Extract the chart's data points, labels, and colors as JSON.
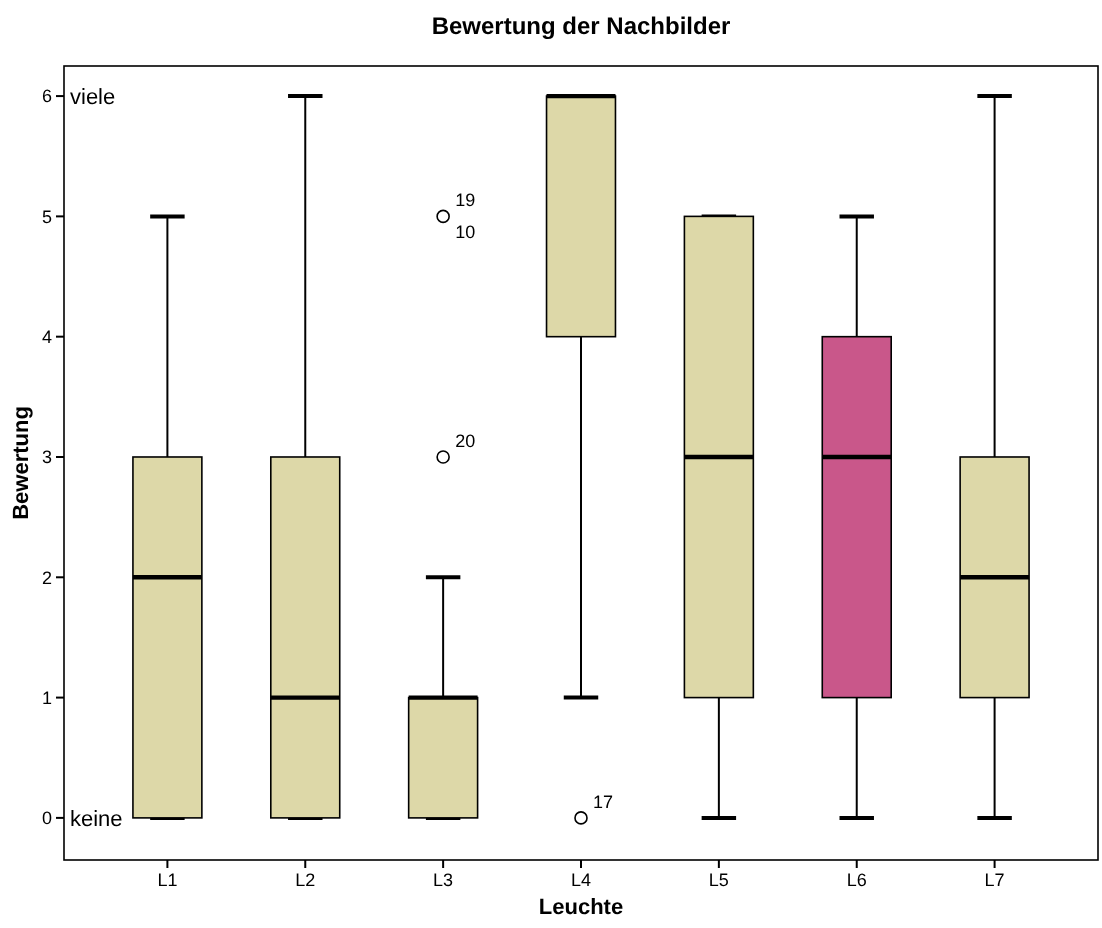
{
  "chart_data": {
    "type": "box",
    "title": "Bewertung der Nachbilder",
    "xlabel": "Leuchte",
    "ylabel": "Bewertung",
    "categories": [
      "L1",
      "L2",
      "L3",
      "L4",
      "L5",
      "L6",
      "L7"
    ],
    "colors": [
      "#ddd8a8",
      "#ddd8a8",
      "#ddd8a8",
      "#ddd8a8",
      "#ddd8a8",
      "#c9578a",
      "#ddd8a8"
    ],
    "boxes": [
      {
        "low": 0,
        "q1": 0,
        "median": 2,
        "q3": 3,
        "high": 5
      },
      {
        "low": 0,
        "q1": 0,
        "median": 1,
        "q3": 3,
        "high": 6
      },
      {
        "low": 0,
        "q1": 0,
        "median": 1,
        "q3": 1,
        "high": 2,
        "outliers": [
          3,
          5
        ]
      },
      {
        "low": 1,
        "q1": 4,
        "median": 6,
        "q3": 6,
        "high": 6,
        "outliers": [
          0
        ]
      },
      {
        "low": 0,
        "q1": 1,
        "median": 3,
        "q3": 5,
        "high": 5
      },
      {
        "low": 0,
        "q1": 1,
        "median": 3,
        "q3": 4,
        "high": 5
      },
      {
        "low": 0,
        "q1": 1,
        "median": 2,
        "q3": 3,
        "high": 6
      }
    ],
    "ylim": [
      -0.35,
      6.25
    ],
    "yticks": [
      0,
      1,
      2,
      3,
      4,
      5,
      6
    ],
    "grid": false,
    "annotations": [
      "viele",
      "keine",
      "19",
      "10",
      "20",
      "17"
    ]
  }
}
